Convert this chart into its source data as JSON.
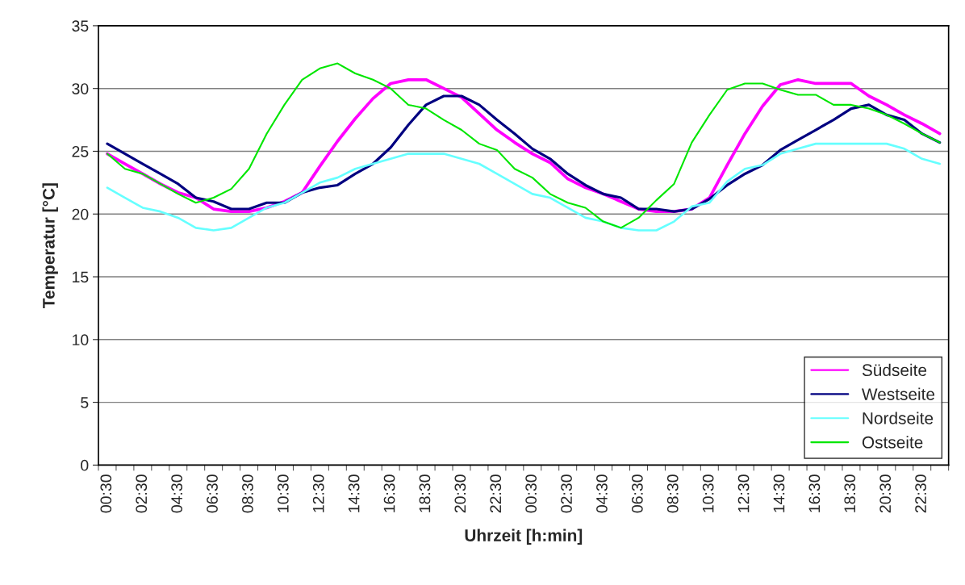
{
  "chart_data": {
    "type": "line",
    "xlabel": "Uhrzeit [h:min]",
    "ylabel": "Temperatur [°C]",
    "categories": [
      "00:30",
      null,
      "02:30",
      null,
      "04:30",
      null,
      "06:30",
      null,
      "08:30",
      null,
      "10:30",
      null,
      "12:30",
      null,
      "14:30",
      null,
      "16:30",
      null,
      "18:30",
      null,
      "20:30",
      null,
      "22:30",
      null,
      "00:30",
      null,
      "02:30",
      null,
      "04:30",
      null,
      "06:30",
      null,
      "08:30",
      null,
      "10:30",
      null,
      "12:30",
      null,
      "14:30",
      null,
      "16:30",
      null,
      "18:30",
      null,
      "20:30",
      null,
      "22:30",
      null
    ],
    "ylim": [
      0,
      35
    ],
    "yticks": [
      0,
      5,
      10,
      15,
      20,
      25,
      30,
      35
    ],
    "grid": "y",
    "legend": "bottom right",
    "marker": "none",
    "line_style": "solid",
    "series": [
      {
        "name": "Südseite",
        "color": "#ff00ff",
        "values": [
          24.8,
          24.0,
          23.2,
          22.4,
          21.7,
          21.3,
          20.4,
          20.2,
          20.2,
          20.5,
          21.0,
          21.7,
          23.8,
          25.8,
          27.6,
          29.2,
          30.4,
          30.7,
          30.7,
          30.0,
          29.3,
          28.0,
          26.7,
          25.7,
          24.8,
          24.1,
          22.8,
          22.1,
          21.6,
          21.0,
          20.4,
          20.2,
          20.2,
          20.4,
          21.3,
          23.9,
          26.4,
          28.6,
          30.3,
          30.7,
          30.4,
          30.4,
          30.4,
          29.4,
          28.7,
          27.9,
          27.2,
          26.4
        ]
      },
      {
        "name": "Westseite",
        "color": "#000080",
        "values": [
          25.6,
          24.8,
          24.0,
          23.2,
          22.4,
          21.3,
          21.0,
          20.4,
          20.4,
          20.9,
          20.9,
          21.7,
          22.1,
          22.3,
          23.2,
          24.0,
          25.3,
          27.1,
          28.7,
          29.4,
          29.4,
          28.7,
          27.5,
          26.4,
          25.2,
          24.4,
          23.2,
          22.3,
          21.6,
          21.3,
          20.4,
          20.4,
          20.2,
          20.4,
          21.2,
          22.3,
          23.2,
          23.9,
          25.1,
          25.9,
          26.7,
          27.5,
          28.4,
          28.7,
          27.9,
          27.5,
          26.4,
          25.7
        ]
      },
      {
        "name": "Nordseite",
        "color": "#66ffff",
        "values": [
          22.1,
          21.3,
          20.5,
          20.2,
          19.7,
          18.9,
          18.7,
          18.9,
          19.7,
          20.5,
          20.9,
          21.7,
          22.5,
          22.9,
          23.6,
          24.0,
          24.4,
          24.8,
          24.8,
          24.8,
          24.4,
          24.0,
          23.2,
          22.4,
          21.6,
          21.3,
          20.5,
          19.7,
          19.4,
          18.9,
          18.7,
          18.7,
          19.4,
          20.6,
          20.9,
          22.6,
          23.6,
          23.9,
          24.8,
          25.2,
          25.6,
          25.6,
          25.6,
          25.6,
          25.6,
          25.2,
          24.4,
          24.0
        ]
      },
      {
        "name": "Ostseite",
        "color": "#00e600",
        "values": [
          24.8,
          23.6,
          23.2,
          22.4,
          21.6,
          20.9,
          21.3,
          22.0,
          23.6,
          26.4,
          28.7,
          30.7,
          31.6,
          32.0,
          31.2,
          30.7,
          30.0,
          28.7,
          28.4,
          27.5,
          26.7,
          25.6,
          25.1,
          23.6,
          22.9,
          21.6,
          20.9,
          20.5,
          19.4,
          18.9,
          19.7,
          21.1,
          22.4,
          25.7,
          27.9,
          29.9,
          30.4,
          30.4,
          29.9,
          29.5,
          29.5,
          28.7,
          28.7,
          28.4,
          27.9,
          27.2,
          26.4,
          25.7
        ]
      }
    ]
  }
}
